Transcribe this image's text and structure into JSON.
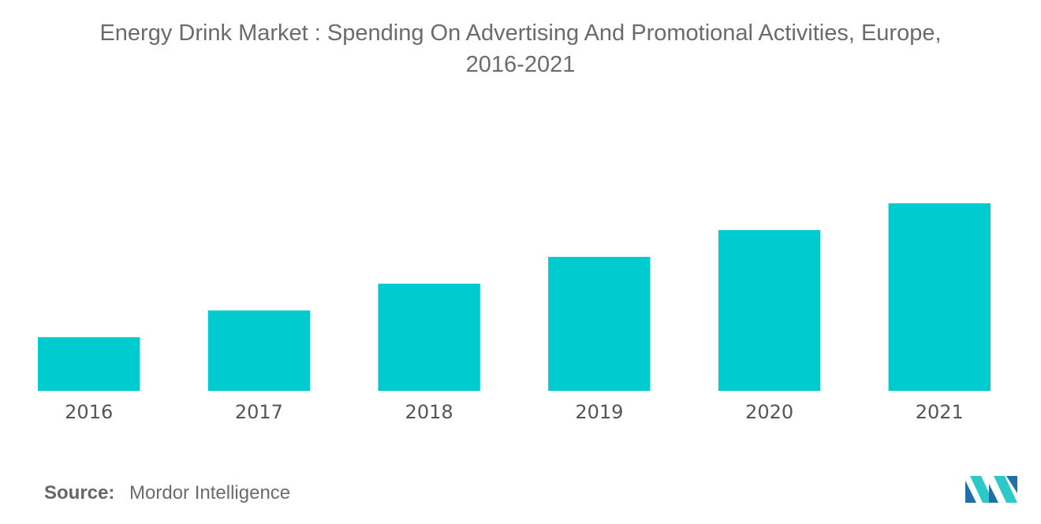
{
  "chart_data": {
    "type": "bar",
    "title_lines": [
      "Energy Drink Market : Spending On Advertising And Promotional Activities, Europe,",
      "2016-2021"
    ],
    "categories": [
      "2016",
      "2017",
      "2018",
      "2019",
      "2020",
      "2021"
    ],
    "values": [
      1.0,
      1.5,
      2.0,
      2.5,
      3.0,
      3.5
    ],
    "xlabel": "",
    "ylabel": "",
    "ylim": [
      0,
      3.5
    ],
    "grid": false,
    "legend": "none"
  },
  "colors": {
    "bar": "#00cccf",
    "logo_dark": "#1f6fa8",
    "logo_light": "#2dc9c9"
  },
  "footer": {
    "source_label": "Source:",
    "source_value": "Mordor Intelligence"
  },
  "logo": {
    "icon": "mordor-intelligence-logo-icon"
  }
}
